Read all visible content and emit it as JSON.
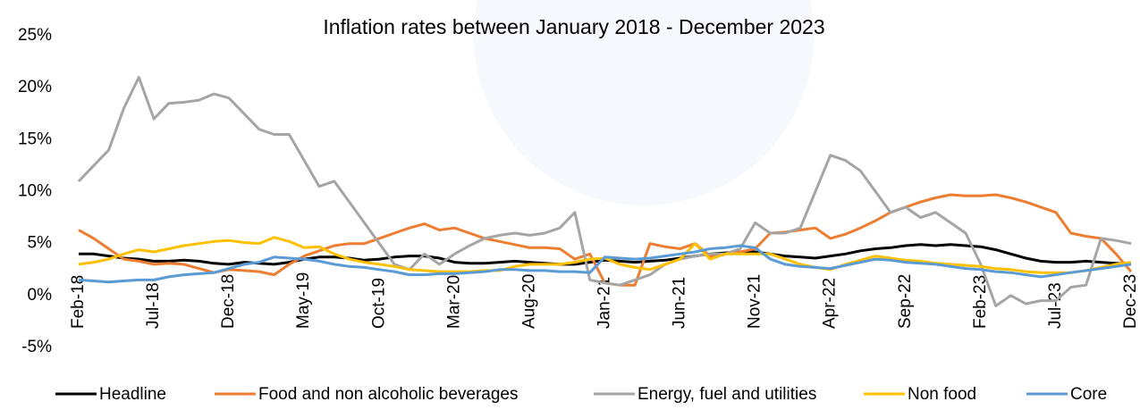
{
  "chart_data": {
    "type": "line",
    "title": "Inflation rates between January 2018 - December 2023",
    "categories": [
      "Feb-18",
      null,
      null,
      null,
      null,
      "Jul-18",
      null,
      null,
      null,
      null,
      "Dec-18",
      null,
      null,
      null,
      null,
      "May-19",
      null,
      null,
      null,
      null,
      "Oct-19",
      null,
      null,
      null,
      null,
      "Mar-20",
      null,
      null,
      null,
      null,
      "Aug-20",
      null,
      null,
      null,
      null,
      "Jan-21",
      null,
      null,
      null,
      null,
      "Jun-21",
      null,
      null,
      null,
      null,
      "Nov-21",
      null,
      null,
      null,
      null,
      "Apr-22",
      null,
      null,
      null,
      null,
      "Sep-22",
      null,
      null,
      null,
      null,
      "Feb-23",
      null,
      null,
      null,
      null,
      "Jul-23",
      null,
      null,
      null,
      null,
      "Dec-23"
    ],
    "ylim": [
      -5,
      25
    ],
    "yticks": [
      {
        "value": -5,
        "label": "-5%"
      },
      {
        "value": 0,
        "label": "0%"
      },
      {
        "value": 5,
        "label": "5%"
      },
      {
        "value": 10,
        "label": "10%"
      },
      {
        "value": 15,
        "label": "15%"
      },
      {
        "value": 20,
        "label": "20%"
      },
      {
        "value": 25,
        "label": "25%"
      }
    ],
    "grid": false,
    "legend": "bottom",
    "series": [
      {
        "name": "Headline",
        "color": "#000000",
        "values": [
          4.0,
          4.0,
          3.8,
          3.6,
          3.5,
          3.3,
          3.3,
          3.4,
          3.3,
          3.1,
          3.0,
          3.2,
          3.1,
          3.0,
          3.2,
          3.5,
          3.7,
          3.7,
          3.6,
          3.4,
          3.5,
          3.7,
          3.8,
          3.8,
          3.6,
          3.2,
          3.1,
          3.1,
          3.2,
          3.3,
          3.2,
          3.1,
          3.0,
          3.0,
          3.2,
          3.4,
          3.3,
          3.2,
          3.3,
          3.4,
          3.6,
          3.8,
          4.0,
          4.1,
          4.2,
          4.2,
          4.0,
          3.8,
          3.7,
          3.6,
          3.8,
          4.0,
          4.3,
          4.5,
          4.6,
          4.8,
          4.9,
          4.8,
          4.9,
          4.8,
          4.7,
          4.4,
          4.0,
          3.6,
          3.3,
          3.2,
          3.2,
          3.3,
          3.2,
          3.1,
          3.0
        ]
      },
      {
        "name": "Food and non alcoholic beverages",
        "color": "#ed7d31",
        "values": [
          6.3,
          5.5,
          4.5,
          3.5,
          3.3,
          3.0,
          3.1,
          3.0,
          2.6,
          2.2,
          2.5,
          2.4,
          2.3,
          2.0,
          3.0,
          3.8,
          4.3,
          4.8,
          5.0,
          5.0,
          5.5,
          6.0,
          6.5,
          6.9,
          6.3,
          6.5,
          6.0,
          5.5,
          5.2,
          4.9,
          4.6,
          4.6,
          4.5,
          3.5,
          4.0,
          1.2,
          1.0,
          1.0,
          5.0,
          4.7,
          4.5,
          5.0,
          3.8,
          4.0,
          4.2,
          4.5,
          6.0,
          6.1,
          6.3,
          6.5,
          5.5,
          5.9,
          6.5,
          7.2,
          8.0,
          8.5,
          9.0,
          9.4,
          9.7,
          9.6,
          9.6,
          9.7,
          9.4,
          9.0,
          8.5,
          8.0,
          6.0,
          5.7,
          5.5,
          4.0,
          2.3
        ]
      },
      {
        "name": "Energy, fuel and utilities",
        "color": "#a5a5a5",
        "values": [
          11,
          12.5,
          14,
          18,
          21,
          17,
          18.5,
          18.6,
          18.8,
          19.4,
          19,
          17.5,
          16,
          15.5,
          15.5,
          13,
          10.5,
          11,
          9,
          7,
          5,
          3,
          2.5,
          4,
          3,
          4,
          4.8,
          5.5,
          5.8,
          6,
          5.8,
          6,
          6.5,
          8,
          1.5,
          1.2,
          1,
          1.5,
          2,
          3,
          3.5,
          3.8,
          4,
          4,
          4.5,
          7,
          6,
          6,
          6.5,
          10,
          13.5,
          13,
          12,
          10,
          8,
          8.5,
          7.5,
          8,
          7,
          6,
          3,
          -1,
          0,
          -0.8,
          -0.5,
          -0.5,
          0.8,
          1.0,
          5.5,
          5.3,
          5.0
        ]
      },
      {
        "name": "Non food",
        "color": "#ffc000",
        "values": [
          3,
          3.2,
          3.5,
          4,
          4.4,
          4.2,
          4.5,
          4.8,
          5,
          5.2,
          5.3,
          5.1,
          5,
          5.6,
          5.2,
          4.6,
          4.7,
          4,
          3.5,
          3.2,
          3,
          2.8,
          2.5,
          2.4,
          2.3,
          2.3,
          2.3,
          2.4,
          2.4,
          2.8,
          3,
          3,
          3,
          3.2,
          3.5,
          3.6,
          3,
          2.7,
          2.5,
          3,
          3.5,
          5,
          3.5,
          4,
          4,
          4,
          4,
          3.5,
          3,
          2.7,
          2.5,
          3,
          3.4,
          3.8,
          3.6,
          3.4,
          3.3,
          3.1,
          3,
          2.9,
          2.8,
          2.6,
          2.5,
          2.3,
          2.2,
          2.2,
          2.2,
          2.4,
          2.7,
          3,
          3.2
        ]
      },
      {
        "name": "Core",
        "color": "#5b9bd5",
        "values": [
          1.5,
          1.4,
          1.3,
          1.4,
          1.5,
          1.5,
          1.8,
          2,
          2.1,
          2.2,
          2.6,
          3,
          3.2,
          3.7,
          3.6,
          3.5,
          3.3,
          3,
          2.8,
          2.7,
          2.5,
          2.3,
          2,
          2,
          2.1,
          2.1,
          2.2,
          2.3,
          2.5,
          2.5,
          2.4,
          2.4,
          2.3,
          2.3,
          2.2,
          3.7,
          3.6,
          3.5,
          3.6,
          3.8,
          4,
          4.2,
          4.5,
          4.6,
          4.8,
          4.6,
          3.5,
          3,
          2.8,
          2.7,
          2.6,
          2.9,
          3.2,
          3.5,
          3.4,
          3.2,
          3.1,
          3,
          2.8,
          2.6,
          2.5,
          2.3,
          2.2,
          2,
          1.8,
          2,
          2.2,
          2.4,
          2.6,
          2.8,
          3.0
        ]
      }
    ]
  }
}
